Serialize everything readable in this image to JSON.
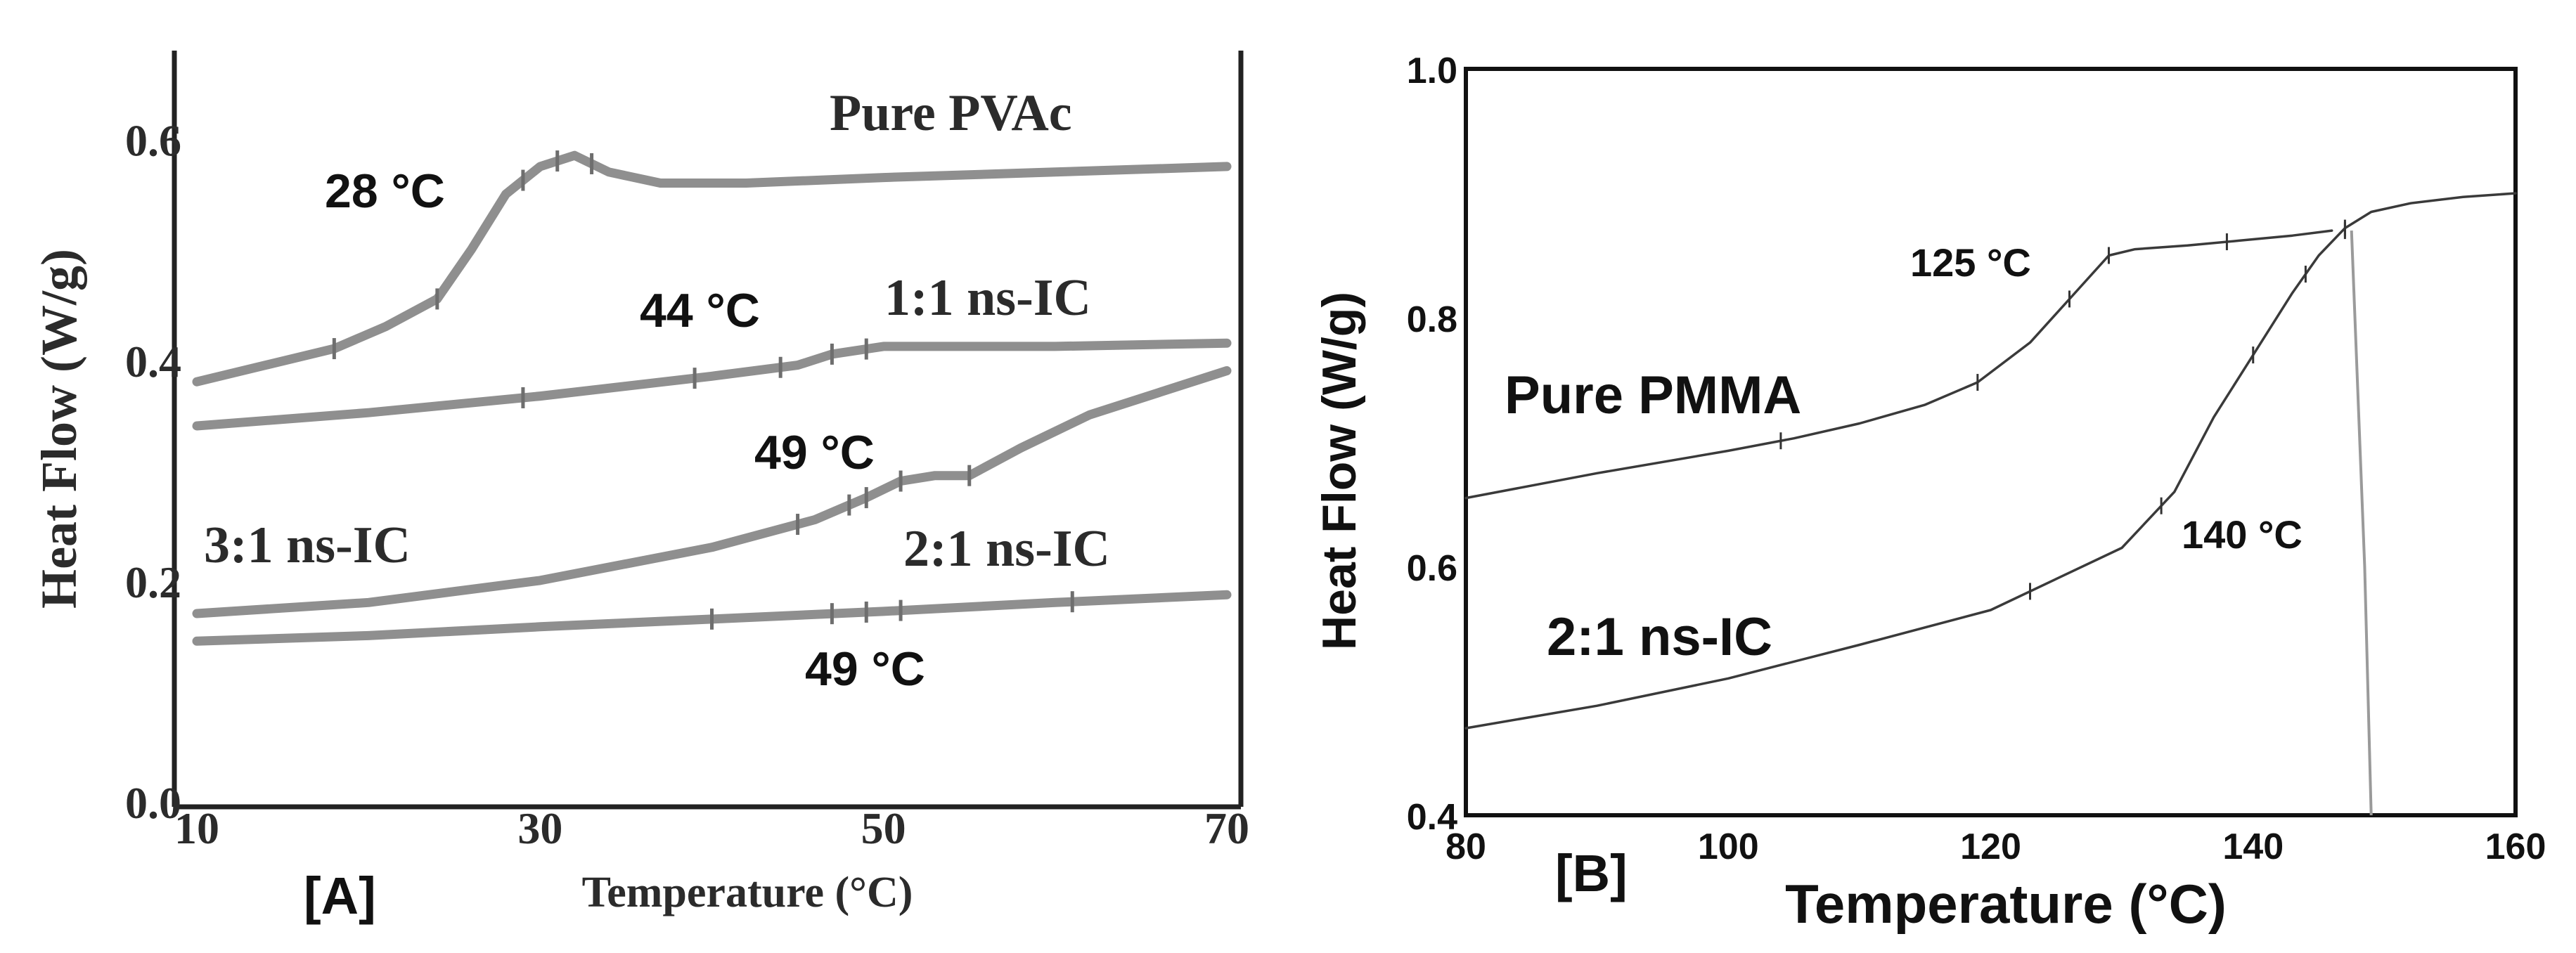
{
  "chart_data": [
    {
      "type": "line",
      "panel_label": "[A]",
      "title": "",
      "xlabel": "Temperature (°C)",
      "ylabel": "Heat Flow (W/g)",
      "xlim": [
        10,
        70
      ],
      "ylim": [
        0.0,
        0.68
      ],
      "xticks": [
        "10",
        "30",
        "50",
        "70"
      ],
      "yticks": [
        "0.0",
        "0.2",
        "0.4",
        "0.6"
      ],
      "xtick_values": [
        10,
        30,
        50,
        70
      ],
      "ytick_values": [
        0.0,
        0.2,
        0.4,
        0.6
      ],
      "series": [
        {
          "name": "Pure PVAc",
          "x": [
            10,
            14,
            18,
            21,
            24,
            26,
            28,
            30,
            32,
            34,
            37,
            42,
            50,
            60,
            70
          ],
          "y": [
            0.38,
            0.395,
            0.41,
            0.43,
            0.455,
            0.5,
            0.55,
            0.575,
            0.585,
            0.57,
            0.56,
            0.56,
            0.565,
            0.57,
            0.575
          ],
          "ticks_x": [
            18,
            24,
            29,
            31,
            33
          ],
          "annotation": "28 °C",
          "legend_text": "Pure PVAc"
        },
        {
          "name": "1:1 ns-IC",
          "x": [
            10,
            20,
            30,
            40,
            45,
            47,
            50,
            60,
            70
          ],
          "y": [
            0.34,
            0.352,
            0.367,
            0.385,
            0.395,
            0.405,
            0.412,
            0.412,
            0.415
          ],
          "ticks_x": [
            29,
            39,
            44,
            47,
            49
          ],
          "annotation": "44 °C",
          "legend_text": "1:1 ns-IC"
        },
        {
          "name": "3:1 ns-IC",
          "x": [
            10,
            20,
            30,
            40,
            46,
            49,
            51,
            53,
            55,
            58,
            62,
            66,
            70
          ],
          "y": [
            0.17,
            0.18,
            0.2,
            0.23,
            0.255,
            0.275,
            0.29,
            0.295,
            0.295,
            0.32,
            0.35,
            0.37,
            0.39
          ],
          "ticks_x": [
            45,
            48,
            49,
            51,
            55
          ],
          "annotation": "49 °C",
          "legend_text": "3:1 ns-IC"
        },
        {
          "name": "2:1 ns-IC",
          "x": [
            10,
            20,
            30,
            40,
            50,
            60,
            70
          ],
          "y": [
            0.145,
            0.15,
            0.158,
            0.165,
            0.172,
            0.18,
            0.187
          ],
          "ticks_x": [
            40,
            47,
            49,
            51,
            61
          ],
          "annotation": "49 °C",
          "legend_text": "2:1 ns-IC"
        }
      ]
    },
    {
      "type": "line",
      "panel_label": "[B]",
      "title": "",
      "xlabel": "Temperature (°C)",
      "ylabel": "Heat Flow (W/g)",
      "xlim": [
        80,
        160
      ],
      "ylim": [
        0.4,
        1.0
      ],
      "xticks": [
        "80",
        "100",
        "120",
        "140",
        "160"
      ],
      "yticks": [
        "0.4",
        "0.6",
        "0.8",
        "1.0"
      ],
      "xtick_values": [
        80,
        100,
        120,
        140,
        160
      ],
      "ytick_values": [
        0.4,
        0.6,
        0.8,
        1.0
      ],
      "series": [
        {
          "name": "Pure PMMA",
          "x": [
            80,
            90,
            100,
            105,
            110,
            115,
            119,
            123,
            126,
            129,
            131,
            135,
            139,
            143,
            146
          ],
          "y": [
            0.655,
            0.675,
            0.693,
            0.703,
            0.715,
            0.73,
            0.748,
            0.78,
            0.815,
            0.85,
            0.855,
            0.858,
            0.862,
            0.866,
            0.87
          ],
          "ticks_x": [
            104,
            119,
            126,
            129,
            138,
            147
          ],
          "annotation": "125 °C",
          "legend_text": "Pure PMMA"
        },
        {
          "name": "2:1 ns-IC",
          "x": [
            80,
            90,
            100,
            110,
            120,
            125,
            130,
            134,
            137,
            140,
            143,
            145,
            147,
            149,
            152,
            156,
            160
          ],
          "y": [
            0.47,
            0.488,
            0.51,
            0.537,
            0.565,
            0.59,
            0.615,
            0.66,
            0.72,
            0.77,
            0.82,
            0.85,
            0.872,
            0.885,
            0.892,
            0.897,
            0.9
          ],
          "ticks_x": [
            123,
            133,
            140,
            144,
            147
          ],
          "annotation": "140 °C",
          "legend_text": "2:1 ns-IC"
        }
      ],
      "vertical_drop": {
        "x": [
          147.5,
          148.5,
          149.0
        ],
        "y": [
          0.87,
          0.6,
          0.4
        ]
      }
    }
  ]
}
